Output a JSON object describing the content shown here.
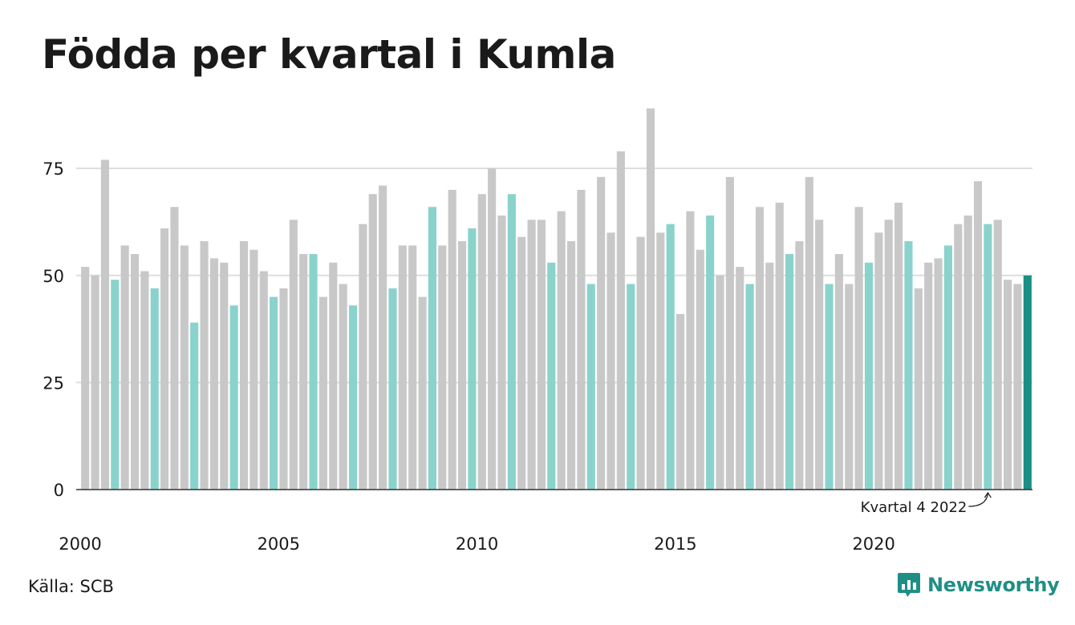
{
  "title": "Födda per kvartal i Kumla",
  "source": "Källa: SCB",
  "brand": "Newsworthy",
  "colors": {
    "bar_default": "#c8c8c8",
    "bar_q4": "#8ad3cc",
    "bar_latest": "#1a8f84",
    "gridline": "#dddddd",
    "axis": "#333333",
    "brand": "#1f8f85"
  },
  "chart_data": {
    "type": "bar",
    "title": "Födda per kvartal i Kumla",
    "xlabel": "",
    "ylabel": "",
    "ylim": [
      0,
      90
    ],
    "y_ticks": [
      "0",
      "25",
      "50",
      "75"
    ],
    "y_tick_values": [
      0,
      25,
      50,
      75
    ],
    "x_tick_labels": [
      "2000",
      "2005",
      "2010",
      "2015",
      "2020"
    ],
    "start_year": 2000,
    "grid": true,
    "highlight": "fourth quarter of each year; latest quarter in dark teal",
    "annotation": {
      "text": "Kvartal 4 2022",
      "target_index": 91
    },
    "values": [
      52,
      50,
      77,
      49,
      57,
      55,
      51,
      47,
      61,
      66,
      57,
      39,
      58,
      54,
      53,
      43,
      58,
      56,
      51,
      45,
      47,
      63,
      55,
      55,
      45,
      53,
      48,
      43,
      62,
      69,
      71,
      47,
      57,
      57,
      45,
      66,
      57,
      70,
      58,
      61,
      69,
      75,
      64,
      69,
      59,
      63,
      63,
      53,
      65,
      58,
      70,
      48,
      73,
      60,
      79,
      48,
      59,
      89,
      60,
      62,
      41,
      65,
      56,
      64,
      50,
      73,
      52,
      48,
      66,
      53,
      67,
      55,
      58,
      73,
      63,
      48,
      55,
      48,
      66,
      53,
      60,
      63,
      67,
      58,
      47,
      53,
      54,
      57,
      62,
      64,
      72,
      62,
      63,
      49,
      48,
      50
    ]
  }
}
